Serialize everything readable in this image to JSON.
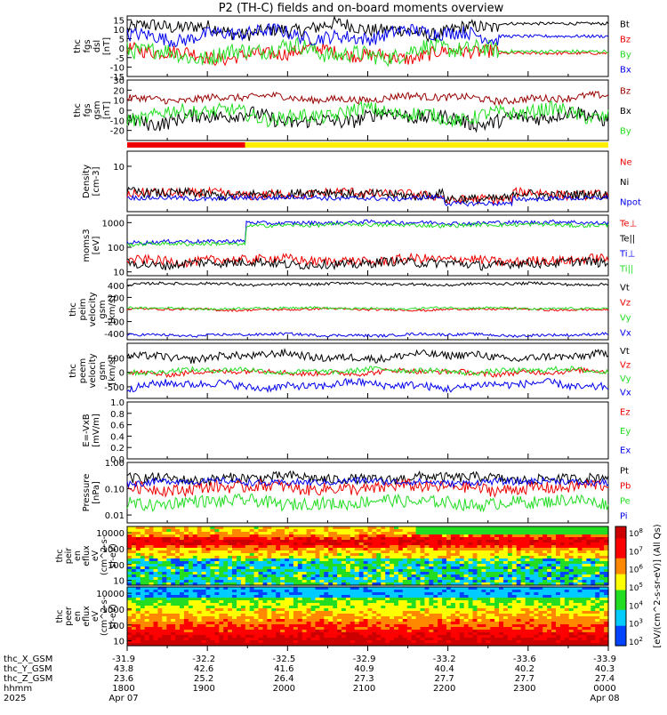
{
  "title": "P2 (TH-C) fields and on-board moments overview",
  "colors": {
    "black": "#000000",
    "red": "#ee0000",
    "green": "#22dd22",
    "blue": "#0000ee",
    "darkred": "#990000",
    "yellow": "#ffee00"
  },
  "x_axis": {
    "rows": [
      {
        "label": "thc_X_GSM",
        "values": [
          "-31.9",
          "-32.2",
          "-32.5",
          "-32.9",
          "-33.2",
          "-33.6",
          "-33.9"
        ]
      },
      {
        "label": "thc_Y_GSM",
        "values": [
          "43.8",
          "42.6",
          "41.6",
          "40.9",
          "40.4",
          "40.2",
          "40.3"
        ]
      },
      {
        "label": "thc_Z_GSM",
        "values": [
          "23.6",
          "25.2",
          "26.4",
          "27.3",
          "27.7",
          "27.7",
          "27.4"
        ]
      },
      {
        "label": "hhmm",
        "values": [
          "1800",
          "1900",
          "2000",
          "2100",
          "2200",
          "2300",
          "0000"
        ]
      },
      {
        "label": "2025",
        "values": [
          "Apr 07",
          "",
          "",
          "",
          "",
          "",
          "Apr 08"
        ]
      }
    ]
  },
  "chart_data": [
    {
      "type": "line",
      "panel": "fgs_dsl",
      "ylabel": [
        "thc",
        "fgs",
        "dsl",
        "[nT]"
      ],
      "ylim": [
        -15,
        17
      ],
      "yticks": [
        "15",
        "10",
        "5",
        "0",
        "-5",
        "-10",
        "-15"
      ],
      "ytick_values": [
        15,
        10,
        5,
        0,
        -5,
        -10,
        -15
      ],
      "series": [
        {
          "name": "Bt",
          "color": "black",
          "level": 10,
          "amp": 4
        },
        {
          "name": "Bz",
          "color": "red",
          "level": -3,
          "amp": 4
        },
        {
          "name": "By",
          "color": "green",
          "level": -2,
          "amp": 5
        },
        {
          "name": "Bx",
          "color": "blue",
          "level": 7,
          "amp": 4
        }
      ]
    },
    {
      "type": "line",
      "panel": "fgs_gsm",
      "ylabel": [
        "thc",
        "fgs",
        "gsm",
        "[nT]"
      ],
      "ylim": [
        -30,
        30
      ],
      "yticks": [
        "30",
        "20",
        "10",
        "0",
        "-10",
        "-20"
      ],
      "ytick_values": [
        30,
        20,
        10,
        0,
        -10,
        -20
      ],
      "series": [
        {
          "name": "Bz",
          "color": "darkred",
          "level": 12,
          "amp": 4
        },
        {
          "name": "Bx",
          "color": "black",
          "level": -8,
          "amp": 8
        },
        {
          "name": "By",
          "color": "green",
          "level": -4,
          "amp": 8
        }
      ]
    },
    {
      "type": "line",
      "panel": "density",
      "ylabel": [
        "Density",
        "[cm-3]"
      ],
      "yscale": "log",
      "ylim": [
        0.01,
        100
      ],
      "yticks": [
        "10"
      ],
      "ytick_values": [
        10
      ],
      "series": [
        {
          "name": "Ne",
          "color": "red",
          "level": 0.15,
          "amp": 0.2
        },
        {
          "name": "Ni",
          "color": "black",
          "level": 0.15,
          "amp": 0.2
        },
        {
          "name": "Npot",
          "color": "blue",
          "level": 0.08,
          "amp": 0.1
        }
      ]
    },
    {
      "type": "line",
      "panel": "temperature",
      "ylabel": [
        "moms3",
        "[eV]"
      ],
      "yscale": "log",
      "ylim": [
        7,
        2000
      ],
      "yticks": [
        "1000",
        "100",
        "10"
      ],
      "ytick_values": [
        1000,
        100,
        10
      ],
      "series": [
        {
          "name": "Te⊥",
          "color": "red",
          "level": 30,
          "amp": 0.12
        },
        {
          "name": "Te||",
          "color": "black",
          "level": 22,
          "amp": 0.12
        },
        {
          "name": "Ti⊥",
          "color": "blue",
          "level": 1000,
          "amp": 0.05
        },
        {
          "name": "Ti||",
          "color": "green",
          "level": 800,
          "amp": 0.05
        }
      ]
    },
    {
      "type": "line",
      "panel": "peim_velocity",
      "ylabel": [
        "thc",
        "peim",
        "velocity",
        "gsm",
        "[km/s]"
      ],
      "ylim": [
        -500,
        500
      ],
      "yticks": [
        "400",
        "200",
        "0",
        "-200",
        "-400"
      ],
      "ytick_values": [
        400,
        200,
        0,
        -200,
        -400
      ],
      "series": [
        {
          "name": "Vt",
          "color": "black",
          "level": 420,
          "amp": 25
        },
        {
          "name": "Vz",
          "color": "red",
          "level": 0,
          "amp": 20
        },
        {
          "name": "Vy",
          "color": "green",
          "level": 20,
          "amp": 20
        },
        {
          "name": "Vx",
          "color": "blue",
          "level": -420,
          "amp": 25
        }
      ]
    },
    {
      "type": "line",
      "panel": "peem_velocity",
      "ylabel": [
        "thc",
        "peem",
        "velocity",
        "gsm",
        "[km/s]"
      ],
      "ylim": [
        -900,
        1000
      ],
      "yticks": [
        "500",
        "0",
        "-500"
      ],
      "ytick_values": [
        500,
        0,
        -500
      ],
      "series": [
        {
          "name": "Vt",
          "color": "black",
          "level": 550,
          "amp": 150
        },
        {
          "name": "Vz",
          "color": "red",
          "level": 0,
          "amp": 100
        },
        {
          "name": "Vy",
          "color": "green",
          "level": 50,
          "amp": 100
        },
        {
          "name": "Vx",
          "color": "blue",
          "level": -450,
          "amp": 150
        }
      ]
    },
    {
      "type": "line",
      "panel": "efield",
      "ylabel": [
        "E=-VxB",
        "[mV/m]"
      ],
      "ylim": [
        0,
        1.0
      ],
      "yticks": [
        "1.0",
        "0.8",
        "0.6",
        "0.4",
        "0.2",
        "0.0"
      ],
      "ytick_values": [
        1.0,
        0.8,
        0.6,
        0.4,
        0.2,
        0.0
      ],
      "series": [
        {
          "name": "Ez",
          "color": "red",
          "values": []
        },
        {
          "name": "Ey",
          "color": "green",
          "values": []
        },
        {
          "name": "Ex",
          "color": "blue",
          "values": []
        }
      ]
    },
    {
      "type": "line",
      "panel": "pressure",
      "ylabel": [
        "Pressure",
        "[nPa]"
      ],
      "yscale": "log",
      "ylim": [
        0.005,
        1.0
      ],
      "yticks": [
        "1.00",
        "0.10",
        "0.01"
      ],
      "ytick_values": [
        1.0,
        0.1,
        0.01
      ],
      "series": [
        {
          "name": "Pt",
          "color": "black",
          "level": 0.25,
          "amp": 0.12
        },
        {
          "name": "Pb",
          "color": "red",
          "level": 0.11,
          "amp": 0.15
        },
        {
          "name": "Pe",
          "color": "green",
          "level": 0.03,
          "amp": 0.15
        },
        {
          "name": "Pi",
          "color": "blue",
          "level": 0.18,
          "amp": 0.08
        }
      ]
    },
    {
      "type": "heatmap",
      "panel": "peir_eflux",
      "ylabel": [
        "thc",
        "peir",
        "en",
        "eflux",
        "eV",
        "(cm^2-s-",
        "sr-eV)"
      ],
      "yscale": "log",
      "ylim": [
        5,
        25000
      ],
      "yticks": [
        "10000",
        "1000",
        "100",
        "10"
      ],
      "ytick_values": [
        10000,
        1000,
        100,
        10
      ]
    },
    {
      "type": "heatmap",
      "panel": "peer_eflux",
      "ylabel": [
        "thc",
        "peer",
        "en",
        "eflux",
        "eV",
        "(cm^2-s-",
        "sr-eV)"
      ],
      "yscale": "log",
      "ylim": [
        5,
        25000
      ],
      "yticks": [
        "10000",
        "1000",
        "100",
        "10"
      ],
      "ytick_values": [
        10000,
        1000,
        100,
        10
      ]
    }
  ],
  "colorbar": {
    "label": "[eV/(cm^2-s-sr-eV)] (All Qs)",
    "ticks": [
      "10^8",
      "10^7",
      "10^6",
      "10^5",
      "10^4",
      "10^3",
      "10^2"
    ]
  },
  "mode_bar": [
    {
      "from": 0.0,
      "to": 0.245,
      "color": "red"
    },
    {
      "from": 0.245,
      "to": 1.0,
      "color": "yellow"
    }
  ]
}
